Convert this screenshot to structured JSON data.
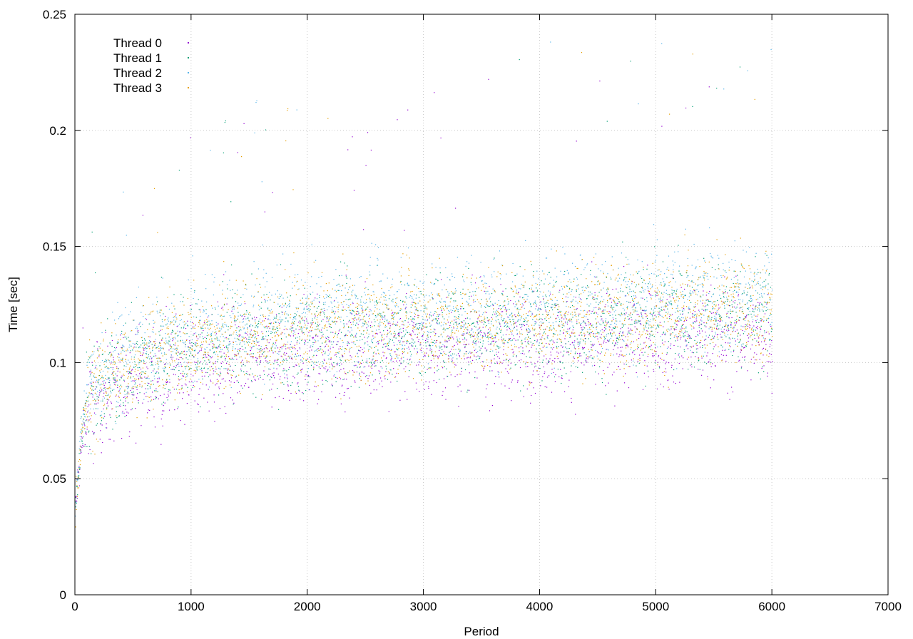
{
  "chart_data": {
    "type": "scatter",
    "title": "",
    "xlabel": "Period",
    "ylabel": "Time [sec]",
    "xlim": [
      0,
      7000
    ],
    "ylim": [
      0,
      0.25
    ],
    "xticks": [
      0,
      1000,
      2000,
      3000,
      4000,
      5000,
      6000,
      7000
    ],
    "xtick_labels": [
      "0",
      "1000",
      "2000",
      "3000",
      "4000",
      "5000",
      "6000",
      "7000"
    ],
    "yticks": [
      0,
      0.05,
      0.1,
      0.15,
      0.2,
      0.25
    ],
    "ytick_labels": [
      "0",
      "0.05",
      "0.1",
      "0.15",
      "0.2",
      "0.25"
    ],
    "grid": true,
    "legend_position": "top-left",
    "period_count": 6000,
    "series": [
      {
        "name": "Thread 0",
        "color": "#9400d3",
        "x": [
          0,
          25,
          50,
          100,
          200,
          300,
          500,
          750,
          1000,
          1500,
          2000,
          2500,
          3000,
          3500,
          4000,
          4500,
          5000,
          5500,
          6000
        ],
        "y": [
          0.037,
          0.05,
          0.062,
          0.078,
          0.084,
          0.088,
          0.094,
          0.097,
          0.099,
          0.102,
          0.104,
          0.106,
          0.107,
          0.108,
          0.109,
          0.11,
          0.111,
          0.112,
          0.112
        ]
      },
      {
        "name": "Thread 1",
        "color": "#009e73",
        "x": [
          0,
          25,
          50,
          100,
          200,
          300,
          500,
          750,
          1000,
          1500,
          2000,
          2500,
          3000,
          3500,
          4000,
          4500,
          5000,
          5500,
          6000
        ],
        "y": [
          0.038,
          0.052,
          0.066,
          0.082,
          0.089,
          0.093,
          0.099,
          0.103,
          0.106,
          0.109,
          0.112,
          0.114,
          0.115,
          0.116,
          0.117,
          0.118,
          0.119,
          0.12,
          0.121
        ]
      },
      {
        "name": "Thread 2",
        "color": "#56b4e9",
        "x": [
          0,
          25,
          50,
          100,
          200,
          300,
          500,
          750,
          1000,
          1500,
          2000,
          2500,
          3000,
          3500,
          4000,
          4500,
          5000,
          5500,
          6000
        ],
        "y": [
          0.039,
          0.055,
          0.07,
          0.086,
          0.094,
          0.099,
          0.105,
          0.109,
          0.112,
          0.116,
          0.119,
          0.121,
          0.122,
          0.123,
          0.124,
          0.125,
          0.126,
          0.127,
          0.128
        ]
      },
      {
        "name": "Thread 3",
        "color": "#e69f00",
        "x": [
          0,
          25,
          50,
          100,
          200,
          300,
          500,
          750,
          1000,
          1500,
          2000,
          2500,
          3000,
          3500,
          4000,
          4500,
          5000,
          5500,
          6000
        ],
        "y": [
          0.038,
          0.052,
          0.067,
          0.083,
          0.091,
          0.095,
          0.101,
          0.105,
          0.108,
          0.111,
          0.114,
          0.116,
          0.117,
          0.118,
          0.119,
          0.12,
          0.121,
          0.122,
          0.123
        ]
      }
    ]
  }
}
